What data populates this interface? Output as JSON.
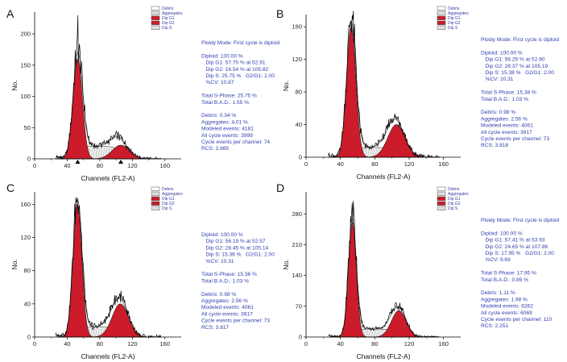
{
  "legend_items": [
    "Debris",
    "Aggregates",
    "Dip G1",
    "Dip G2",
    "Dip S"
  ],
  "colors": {
    "debris": "#ffffff",
    "aggregates": "#dedede",
    "g1": "#cc1b2a",
    "g2": "#cc1b2a",
    "s_phase": "#eeeeee",
    "stats_text": "#2f3fb0",
    "legend_text": "#3a3aa8"
  },
  "chart_data": [
    {
      "panel": "A",
      "type": "area",
      "xlabel": "Channels (FL2-A)",
      "ylabel": "No.",
      "xlim": [
        0,
        180
      ],
      "x_ticks": [
        0,
        40,
        80,
        120,
        160
      ],
      "ylim": [
        0,
        235
      ],
      "y_ticks": [
        0,
        50,
        100,
        150,
        200
      ],
      "g1": {
        "mean": 52.91,
        "sd": 5.75,
        "peak": 160
      },
      "g2": {
        "mean": 105.82,
        "sd": 10.5,
        "peak": 22
      },
      "s_phase": {
        "level": 20
      },
      "total_peak": 230,
      "markers": [
        52.91,
        105.82
      ],
      "stats": [
        "Ploidy Mode: First cycle is diploid",
        "",
        "Diploid: 100.00 %",
        "   Dip G1: 57.70 % at 52.91",
        "   Dip G2: 16.54 % at 105.82",
        "   Dip S: 25.75 %   G2/G1: 2.00",
        "   %CV: 10.87",
        "",
        "Total S-Phase: 25.75 %",
        "Total B.A.D.: 1.55 %",
        "",
        "Debris: 0.34 %",
        "Aggregates: 4.01 %",
        "Modeled events: 4181",
        "All cycle events: 3999",
        "Cycle events per channel: 74",
        "RCS: 3.865"
      ]
    },
    {
      "panel": "B",
      "type": "area",
      "xlabel": "Channels (FL2-A)",
      "ylabel": "No.",
      "xlim": [
        0,
        180
      ],
      "x_ticks": [
        0,
        40,
        80,
        120,
        160
      ],
      "ylim": [
        0,
        175
      ],
      "y_ticks": [
        0,
        40,
        80,
        120,
        160
      ],
      "g1": {
        "mean": 52.6,
        "sd": 5.4,
        "peak": 160
      },
      "g2": {
        "mean": 105.19,
        "sd": 10,
        "peak": 40
      },
      "s_phase": {
        "level": 12
      },
      "total_peak": 168,
      "markers": [],
      "stats": [
        "Ploidy Mode: First cycle is diploid",
        "",
        "Diploid: 100.00 %",
        "   Dip G1: 56.25 % at 52.60",
        "   Dip G2: 28.37 % at 105.19",
        "   Dip S: 15.38 %   G2/G1: 2.00",
        "   %CV: 10.31",
        "",
        "Total S-Phase: 15.38 %",
        "Total B.A.D.: 1.03 %",
        "",
        "Debris: 0.98 %",
        "Aggregates: 2.56 %",
        "Modeled events: 4061",
        "All cycle events: 3917",
        "Cycle events per channel: 73",
        "RCS: 3.818"
      ]
    },
    {
      "panel": "C",
      "type": "area",
      "xlabel": "Channels (FL2-A)",
      "ylabel": "No.",
      "xlim": [
        0,
        180
      ],
      "x_ticks": [
        0,
        40,
        80,
        120,
        160
      ],
      "ylim": [
        0,
        175
      ],
      "y_ticks": [
        0,
        40,
        80,
        120,
        160
      ],
      "g1": {
        "mean": 52.57,
        "sd": 5.4,
        "peak": 160
      },
      "g2": {
        "mean": 105.14,
        "sd": 10,
        "peak": 40
      },
      "s_phase": {
        "level": 12
      },
      "total_peak": 168,
      "markers": [],
      "stats": [
        "Diploid: 100.00 %",
        "   Dip G1: 56.19 % at 52.57",
        "   Dip G2: 28.45 % at 105.14",
        "   Dip S: 15.36 %   G2/G1: 2.00",
        "   %CV: 10.31",
        "",
        "Total S-Phase: 15.36 %",
        "Total B.A.D.: 1.03 %",
        "",
        "Debris: 0.98 %",
        "Aggregates: 2.56 %",
        "Modeled events: 4061",
        "All cycle events: 3917",
        "Cycle events per channel: 73",
        "RCS: 3.817"
      ]
    },
    {
      "panel": "D",
      "type": "area",
      "xlabel": "Channels (FL2-A)",
      "ylabel": "No.",
      "xlim": [
        0,
        180
      ],
      "x_ticks": [
        0,
        40,
        80,
        120,
        160
      ],
      "ylim": [
        0,
        330
      ],
      "y_ticks": [
        0,
        70,
        140,
        210,
        280
      ],
      "g1": {
        "mean": 53.93,
        "sd": 4.6,
        "peak": 260
      },
      "g2": {
        "mean": 107.86,
        "sd": 8.5,
        "peak": 60
      },
      "s_phase": {
        "level": 18
      },
      "total_peak": 305,
      "markers": [],
      "stats": [
        "Ploidy Mode: First cycle is diploid",
        "",
        "Diploid: 100.00 %",
        "   Dip G1: 57.41 % at 53.93",
        "   Dip G2: 24.65 % at 107.86",
        "   Dip S: 17.95 %   G2/G1: 2.00",
        "   %CV: 9.69",
        "",
        "Total S-Phase: 17.95 %",
        "Total B.A.D.: 0.85 %",
        "",
        "Debris: 1.11 %",
        "Aggregates: 1.98 %",
        "Modeled events: 6262",
        "All cycle events: 6069",
        "Cycle events per channel: 110",
        "RCS: 2.251"
      ]
    }
  ]
}
